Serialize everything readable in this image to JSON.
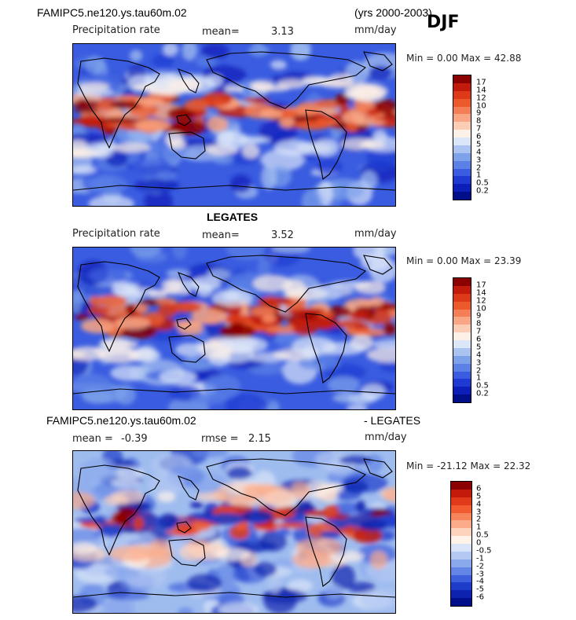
{
  "header": {
    "case_name": "FAMIPC5.ne120.ys.tau60m.02",
    "years": "(yrs 2000-2003)",
    "season": "DJF"
  },
  "panels": [
    {
      "id": "model",
      "title": "",
      "field_label": "Precipitation rate",
      "stat1_label": "mean=",
      "stat1_value": "3.13",
      "units": "mm/day",
      "minmax": "Min =    0.00 Max =   42.88",
      "levels": [
        "17",
        "14",
        "12",
        "10",
        "9",
        "8",
        "7",
        "6",
        "5",
        "4",
        "3",
        "2",
        "1",
        "0.5",
        "0.2"
      ],
      "colors": [
        "#8b0000",
        "#c21b0b",
        "#dc3a18",
        "#ec5a2c",
        "#f47f56",
        "#f8a683",
        "#fbcdb4",
        "#fdf0e6",
        "#dbe6f8",
        "#aac3f0",
        "#7ea2ea",
        "#5b80e6",
        "#3a5ce0",
        "#1e3ad2",
        "#0b1fb8",
        "#000e8a"
      ]
    },
    {
      "id": "obs",
      "title": "LEGATES",
      "field_label": "Precipitation rate",
      "stat1_label": "mean=",
      "stat1_value": "3.52",
      "units": "mm/day",
      "minmax": "Min =    0.00 Max =   23.39",
      "levels": [
        "17",
        "14",
        "12",
        "10",
        "9",
        "8",
        "7",
        "6",
        "5",
        "4",
        "3",
        "2",
        "1",
        "0.5",
        "0.2"
      ],
      "colors": [
        "#8b0000",
        "#c21b0b",
        "#dc3a18",
        "#ec5a2c",
        "#f47f56",
        "#f8a683",
        "#fbcdb4",
        "#fdf0e6",
        "#dbe6f8",
        "#aac3f0",
        "#7ea2ea",
        "#5b80e6",
        "#3a5ce0",
        "#1e3ad2",
        "#0b1fb8",
        "#000e8a"
      ]
    },
    {
      "id": "diff",
      "title_left": "FAMIPC5.ne120.ys.tau60m.02",
      "title_right": "- LEGATES",
      "stat1_label": "mean =",
      "stat1_value": "-0.39",
      "stat2_label": "rmse =",
      "stat2_value": "2.15",
      "units": "mm/day",
      "minmax": "Min = -21.12 Max =   22.32",
      "levels": [
        "6",
        "5",
        "4",
        "3",
        "2",
        "1",
        "0.5",
        "0",
        "-0.5",
        "-1",
        "-2",
        "-3",
        "-4",
        "-5",
        "-6"
      ],
      "colors": [
        "#8b0000",
        "#c21b0b",
        "#e03a1a",
        "#f25a30",
        "#f7845a",
        "#fbab8a",
        "#fdd3bd",
        "#fff3ea",
        "#d8e4f8",
        "#b3c8f2",
        "#8aa8ec",
        "#6385e6",
        "#3e60dc",
        "#1e3cca",
        "#0d22ae",
        "#000e8a"
      ]
    }
  ]
}
